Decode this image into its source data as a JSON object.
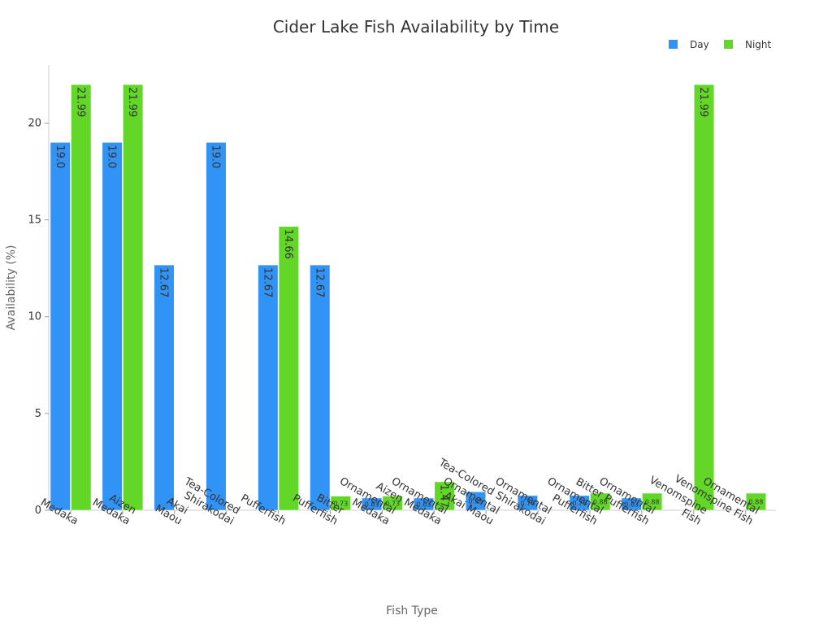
{
  "chart_data": {
    "type": "bar",
    "title": "Cider Lake Fish Availability by Time",
    "xlabel": "Fish Type",
    "ylabel": "Availability (%)",
    "ylim": [
      0,
      23
    ],
    "yticks": [
      0,
      5,
      10,
      15,
      20
    ],
    "grid": false,
    "legend_position": "top-right",
    "categories": [
      [
        "Medaka"
      ],
      [
        "Aizen",
        "Medaka"
      ],
      [
        "Akai",
        "Maou"
      ],
      [
        "Tea-Colored",
        "Shirakodai"
      ],
      [
        "Pufferfish"
      ],
      [
        "Bitter",
        "Pufferfish"
      ],
      [
        "Ornamental",
        "Medaka"
      ],
      [
        "Ornamental",
        "Aizen Medaka"
      ],
      [
        "Ornamental",
        "Akai Maou"
      ],
      [
        "Ornamental",
        "Tea-Colored Shirakodai"
      ],
      [
        "Ornamental",
        "Pufferfish"
      ],
      [
        "Ornamental",
        "Bitter Pufferfish"
      ],
      [
        "Venomspine",
        "Fish"
      ],
      [
        "Ornamental",
        "Venomspine Fish"
      ]
    ],
    "series": [
      {
        "name": "Day",
        "color": "#3193f5",
        "values": [
          19.0,
          19.0,
          12.67,
          19.0,
          12.67,
          12.67,
          0.63,
          0.63,
          0.95,
          0.76,
          0.76,
          0.63,
          0,
          0
        ],
        "labels": [
          "19.0",
          "19.0",
          "12.67",
          "19.0",
          "12.67",
          "12.67",
          "0.63",
          "0.63",
          "0.95",
          "0.76",
          "0.76",
          "0.63",
          "",
          ""
        ]
      },
      {
        "name": "Night",
        "color": "#63d727",
        "values": [
          21.99,
          21.99,
          0,
          0,
          14.66,
          0.73,
          0.73,
          1.47,
          0,
          0,
          0.88,
          0.88,
          21.99,
          0.88
        ],
        "labels": [
          "21.99",
          "21.99",
          "",
          "",
          "14.66",
          "0.73",
          "0.73",
          "1.47",
          "",
          "",
          "0.88",
          "0.88",
          "21.99",
          "0.88"
        ]
      }
    ]
  }
}
